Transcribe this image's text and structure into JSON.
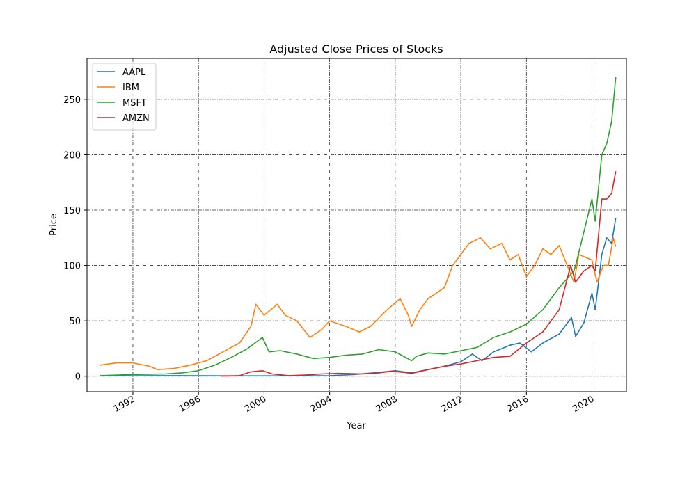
{
  "chart_data": {
    "type": "line",
    "title": "Adjusted Close Prices of Stocks",
    "xlabel": "Year",
    "ylabel": "Price",
    "xlim": [
      1989.2,
      2022.1
    ],
    "ylim": [
      -14,
      287
    ],
    "xticks": [
      1992,
      1996,
      2000,
      2004,
      2008,
      2012,
      2016,
      2020
    ],
    "yticks": [
      0,
      50,
      100,
      150,
      200,
      250
    ],
    "grid": true,
    "legend_position": "top-left",
    "series": [
      {
        "name": "AAPL",
        "color": "#1f77b4",
        "x": [
          1990.0,
          1994.0,
          1998.0,
          2002.0,
          2004.0,
          2005.5,
          2007.0,
          2008.0,
          2009.0,
          2010.0,
          2011.0,
          2012.0,
          2012.7,
          2013.3,
          2014.0,
          2015.0,
          2015.6,
          2016.3,
          2017.0,
          2018.0,
          2018.75,
          2019.0,
          2019.5,
          2020.0,
          2020.2,
          2020.6,
          2020.9,
          2021.2,
          2021.45
        ],
        "y": [
          0.3,
          0.5,
          0.3,
          0.3,
          0.5,
          1.5,
          3.5,
          5.0,
          3.0,
          6.0,
          9.0,
          13.0,
          20.0,
          14.0,
          22.0,
          28.0,
          30.0,
          22.0,
          30.0,
          38.0,
          53.0,
          36.0,
          48.0,
          75.0,
          60.0,
          110.0,
          125.0,
          120.0,
          143.0
        ]
      },
      {
        "name": "IBM",
        "color": "#ff7f0e",
        "x": [
          1990.0,
          1991.0,
          1992.0,
          1993.0,
          1993.5,
          1994.5,
          1995.5,
          1996.5,
          1997.5,
          1998.5,
          1999.2,
          1999.5,
          2000.0,
          2000.8,
          2001.3,
          2002.0,
          2002.8,
          2003.5,
          2004.0,
          2005.0,
          2005.8,
          2006.5,
          2007.5,
          2008.3,
          2008.8,
          2009.0,
          2009.5,
          2010.0,
          2010.5,
          2011.0,
          2011.5,
          2012.0,
          2012.5,
          2013.2,
          2013.8,
          2014.5,
          2015.0,
          2015.5,
          2016.0,
          2016.5,
          2017.0,
          2017.5,
          2018.0,
          2018.9,
          2019.2,
          2020.0,
          2020.3,
          2020.7,
          2021.0,
          2021.3,
          2021.45
        ],
        "y": [
          10.0,
          12.0,
          12.0,
          9.0,
          6.0,
          7.0,
          10.0,
          14.0,
          22.0,
          30.0,
          45.0,
          65.0,
          55.0,
          65.0,
          55.0,
          50.0,
          35.0,
          42.0,
          50.0,
          45.0,
          40.0,
          45.0,
          60.0,
          70.0,
          55.0,
          45.0,
          60.0,
          70.0,
          75.0,
          80.0,
          100.0,
          110.0,
          120.0,
          125.0,
          115.0,
          120.0,
          105.0,
          110.0,
          90.0,
          100.0,
          115.0,
          110.0,
          118.0,
          85.0,
          110.0,
          105.0,
          85.0,
          100.0,
          100.0,
          125.0,
          117.0
        ]
      },
      {
        "name": "MSFT",
        "color": "#2ca02c",
        "x": [
          1990.0,
          1992.0,
          1994.0,
          1995.0,
          1996.0,
          1997.0,
          1998.0,
          1999.0,
          1999.9,
          2000.3,
          2001.0,
          2002.0,
          2003.0,
          2004.0,
          2005.0,
          2006.0,
          2007.0,
          2008.0,
          2008.5,
          2009.0,
          2009.3,
          2010.0,
          2011.0,
          2012.0,
          2013.0,
          2014.0,
          2015.0,
          2016.0,
          2017.0,
          2018.0,
          2018.9,
          2019.0,
          2019.5,
          2020.0,
          2020.2,
          2020.6,
          2020.9,
          2021.2,
          2021.45
        ],
        "y": [
          0.5,
          1.5,
          2.0,
          3.0,
          5.0,
          10.0,
          17.0,
          25.0,
          35.0,
          22.0,
          23.0,
          20.0,
          16.0,
          17.0,
          19.0,
          20.0,
          24.0,
          22.0,
          18.0,
          14.0,
          18.0,
          21.0,
          20.0,
          23.0,
          26.0,
          35.0,
          40.0,
          47.0,
          60.0,
          80.0,
          95.0,
          100.0,
          130.0,
          160.0,
          140.0,
          200.0,
          210.0,
          230.0,
          270.0
        ]
      },
      {
        "name": "AMZN",
        "color": "#d62728",
        "x": [
          1997.4,
          1998.5,
          1999.2,
          1999.9,
          2000.5,
          2001.5,
          2002.5,
          2003.5,
          2004.5,
          2006.0,
          2007.0,
          2007.8,
          2008.5,
          2009.0,
          2010.0,
          2011.0,
          2012.0,
          2013.0,
          2014.0,
          2015.0,
          2016.0,
          2017.0,
          2018.0,
          2018.7,
          2019.0,
          2019.5,
          2020.0,
          2020.2,
          2020.6,
          2020.9,
          2021.2,
          2021.45
        ],
        "y": [
          0.1,
          0.5,
          4.0,
          5.0,
          2.0,
          0.5,
          1.0,
          2.0,
          2.5,
          2.0,
          3.0,
          4.5,
          3.5,
          2.5,
          6.0,
          9.0,
          11.0,
          14.0,
          17.0,
          18.0,
          30.0,
          40.0,
          60.0,
          100.0,
          85.0,
          95.0,
          100.0,
          95.0,
          160.0,
          160.0,
          165.0,
          185.0
        ]
      }
    ]
  }
}
